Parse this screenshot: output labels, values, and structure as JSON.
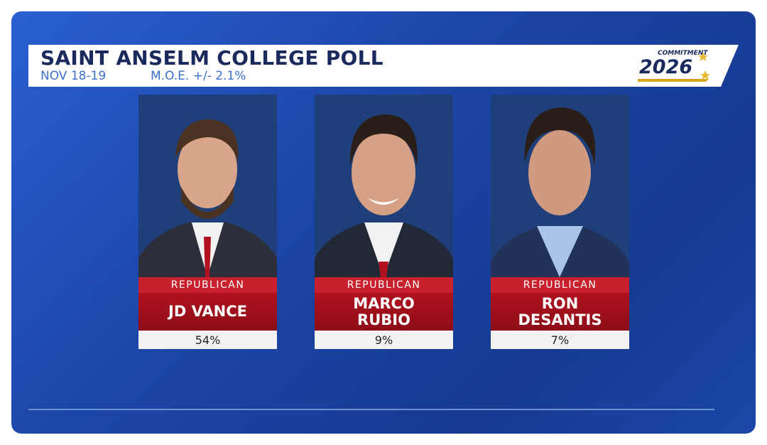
{
  "header": {
    "title": "SAINT ANSELM COLLEGE POLL",
    "dates": "NOV 18-19",
    "moe": "M.O.E. +/- 2.1%"
  },
  "logo": {
    "top": "COMMITMENT",
    "year": "2026"
  },
  "candidates": [
    {
      "party": "REPUBLICAN",
      "name_lines": [
        "JD VANCE"
      ],
      "result": "54%"
    },
    {
      "party": "REPUBLICAN",
      "name_lines": [
        "MARCO",
        "RUBIO"
      ],
      "result": "9%"
    },
    {
      "party": "REPUBLICAN",
      "name_lines": [
        "RON",
        "DESANTIS"
      ],
      "result": "7%"
    }
  ]
}
